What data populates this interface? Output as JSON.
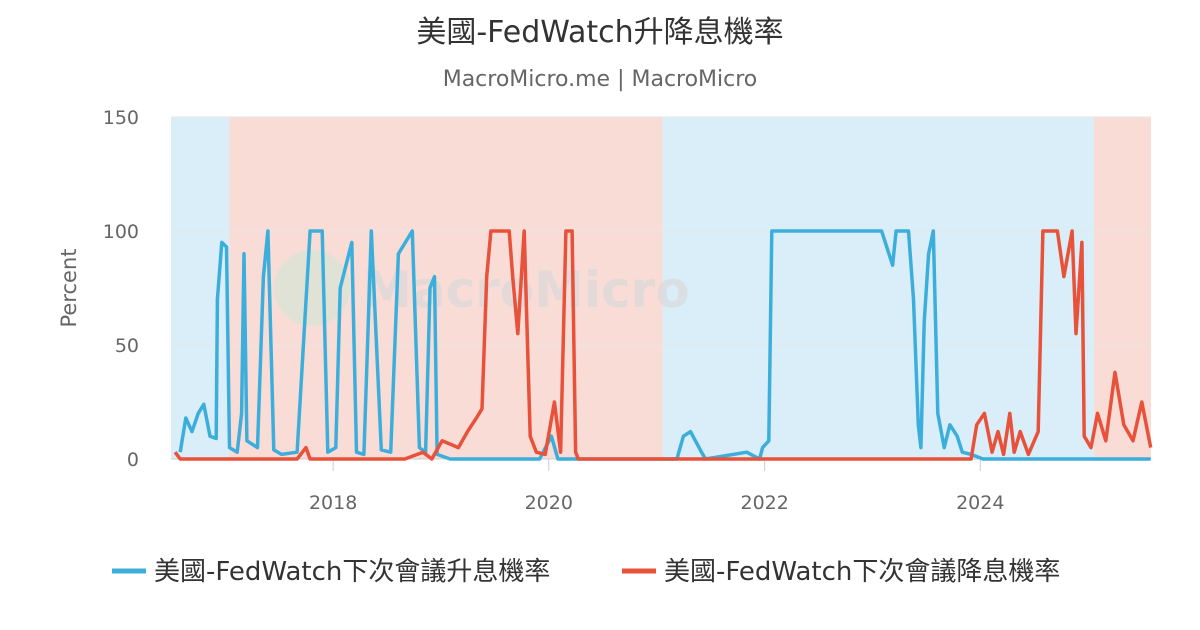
{
  "chart_data": {
    "type": "line",
    "title": "美國-FedWatch升降息機率",
    "subtitle": "MacroMicro.me | MacroMicro",
    "ylabel": "Percent",
    "xlabel": "",
    "ylim": [
      0,
      150
    ],
    "yticks": [
      0,
      50,
      100,
      150
    ],
    "xlim": [
      "2016-07-01",
      "2025-08-01"
    ],
    "xticks": [
      {
        "date": "2018-01-01",
        "label": "2018"
      },
      {
        "date": "2020-01-01",
        "label": "2020"
      },
      {
        "date": "2022-01-01",
        "label": "2022"
      },
      {
        "date": "2024-01-01",
        "label": "2024"
      }
    ],
    "grid": true,
    "legend_position": "bottom",
    "watermark": "MacroMicro",
    "bands": [
      {
        "start": "2016-07-01",
        "end": "2017-01-15",
        "color": "#d9eef8"
      },
      {
        "start": "2017-01-15",
        "end": "2021-01-20",
        "color": "#fadcd6"
      },
      {
        "start": "2021-01-20",
        "end": "2025-01-20",
        "color": "#d9eef8"
      },
      {
        "start": "2025-01-20",
        "end": "2025-08-01",
        "color": "#fadcd6"
      }
    ],
    "series": [
      {
        "name": "美國-FedWatch下次會議升息機率",
        "color": "#3caedb",
        "points": [
          [
            "2016-08-01",
            3
          ],
          [
            "2016-08-20",
            18
          ],
          [
            "2016-09-10",
            12
          ],
          [
            "2016-10-01",
            20
          ],
          [
            "2016-10-20",
            24
          ],
          [
            "2016-11-10",
            10
          ],
          [
            "2016-12-01",
            9
          ],
          [
            "2016-12-05",
            70
          ],
          [
            "2016-12-20",
            95
          ],
          [
            "2017-01-05",
            93
          ],
          [
            "2017-01-15",
            5
          ],
          [
            "2017-02-10",
            3
          ],
          [
            "2017-02-25",
            20
          ],
          [
            "2017-03-05",
            90
          ],
          [
            "2017-03-15",
            8
          ],
          [
            "2017-04-20",
            5
          ],
          [
            "2017-05-10",
            80
          ],
          [
            "2017-05-25",
            100
          ],
          [
            "2017-06-14",
            4
          ],
          [
            "2017-07-10",
            2
          ],
          [
            "2017-09-01",
            3
          ],
          [
            "2017-10-15",
            100
          ],
          [
            "2017-11-25",
            100
          ],
          [
            "2017-12-14",
            3
          ],
          [
            "2018-01-10",
            5
          ],
          [
            "2018-01-25",
            75
          ],
          [
            "2018-03-05",
            95
          ],
          [
            "2018-03-21",
            3
          ],
          [
            "2018-04-15",
            2
          ],
          [
            "2018-05-10",
            100
          ],
          [
            "2018-06-13",
            4
          ],
          [
            "2018-07-15",
            3
          ],
          [
            "2018-08-10",
            90
          ],
          [
            "2018-09-26",
            100
          ],
          [
            "2018-10-20",
            5
          ],
          [
            "2018-11-10",
            3
          ],
          [
            "2018-11-25",
            75
          ],
          [
            "2018-12-10",
            80
          ],
          [
            "2018-12-19",
            2
          ],
          [
            "2019-02-01",
            0
          ],
          [
            "2019-12-01",
            0
          ],
          [
            "2020-01-10",
            10
          ],
          [
            "2020-02-01",
            0
          ],
          [
            "2020-06-01",
            0
          ],
          [
            "2021-01-20",
            0
          ],
          [
            "2021-03-10",
            0
          ],
          [
            "2021-04-01",
            10
          ],
          [
            "2021-04-25",
            12
          ],
          [
            "2021-06-01",
            3
          ],
          [
            "2021-06-15",
            0
          ],
          [
            "2021-11-01",
            3
          ],
          [
            "2021-12-15",
            0
          ],
          [
            "2021-12-25",
            5
          ],
          [
            "2022-01-15",
            8
          ],
          [
            "2022-01-25",
            100
          ],
          [
            "2022-03-16",
            100
          ],
          [
            "2022-05-04",
            100
          ],
          [
            "2022-07-27",
            100
          ],
          [
            "2022-11-02",
            100
          ],
          [
            "2023-02-01",
            100
          ],
          [
            "2023-03-10",
            85
          ],
          [
            "2023-03-22",
            100
          ],
          [
            "2023-05-03",
            100
          ],
          [
            "2023-05-20",
            70
          ],
          [
            "2023-06-05",
            15
          ],
          [
            "2023-06-14",
            5
          ],
          [
            "2023-06-25",
            60
          ],
          [
            "2023-07-10",
            90
          ],
          [
            "2023-07-26",
            100
          ],
          [
            "2023-08-10",
            20
          ],
          [
            "2023-09-01",
            5
          ],
          [
            "2023-09-20",
            15
          ],
          [
            "2023-10-15",
            10
          ],
          [
            "2023-11-01",
            3
          ],
          [
            "2023-12-01",
            2
          ],
          [
            "2024-01-10",
            0
          ],
          [
            "2025-07-31",
            0
          ]
        ]
      },
      {
        "name": "美國-FedWatch下次會議降息機率",
        "color": "#e8513a",
        "points": [
          [
            "2016-07-15",
            3
          ],
          [
            "2016-08-01",
            0
          ],
          [
            "2017-09-01",
            0
          ],
          [
            "2017-10-01",
            5
          ],
          [
            "2017-10-15",
            0
          ],
          [
            "2018-09-01",
            0
          ],
          [
            "2018-11-01",
            3
          ],
          [
            "2018-12-01",
            0
          ],
          [
            "2019-01-05",
            8
          ],
          [
            "2019-03-01",
            5
          ],
          [
            "2019-04-01",
            12
          ],
          [
            "2019-05-01",
            18
          ],
          [
            "2019-05-20",
            22
          ],
          [
            "2019-06-05",
            80
          ],
          [
            "2019-06-19",
            100
          ],
          [
            "2019-07-31",
            100
          ],
          [
            "2019-08-20",
            100
          ],
          [
            "2019-09-01",
            80
          ],
          [
            "2019-09-18",
            55
          ],
          [
            "2019-10-10",
            100
          ],
          [
            "2019-10-30",
            10
          ],
          [
            "2019-11-20",
            3
          ],
          [
            "2019-12-20",
            2
          ],
          [
            "2020-01-20",
            25
          ],
          [
            "2020-02-10",
            3
          ],
          [
            "2020-02-28",
            100
          ],
          [
            "2020-03-20",
            100
          ],
          [
            "2020-04-01",
            3
          ],
          [
            "2020-04-10",
            0
          ],
          [
            "2023-12-01",
            0
          ],
          [
            "2023-12-20",
            15
          ],
          [
            "2024-01-15",
            20
          ],
          [
            "2024-02-10",
            3
          ],
          [
            "2024-03-01",
            12
          ],
          [
            "2024-03-20",
            2
          ],
          [
            "2024-04-10",
            20
          ],
          [
            "2024-04-25",
            3
          ],
          [
            "2024-05-15",
            12
          ],
          [
            "2024-06-12",
            2
          ],
          [
            "2024-07-15",
            12
          ],
          [
            "2024-07-31",
            100
          ],
          [
            "2024-09-18",
            100
          ],
          [
            "2024-10-10",
            80
          ],
          [
            "2024-11-07",
            100
          ],
          [
            "2024-11-20",
            55
          ],
          [
            "2024-12-10",
            95
          ],
          [
            "2024-12-18",
            10
          ],
          [
            "2025-01-10",
            5
          ],
          [
            "2025-02-01",
            20
          ],
          [
            "2025-03-01",
            8
          ],
          [
            "2025-04-01",
            38
          ],
          [
            "2025-05-01",
            15
          ],
          [
            "2025-06-01",
            8
          ],
          [
            "2025-07-01",
            25
          ],
          [
            "2025-07-31",
            5
          ]
        ]
      }
    ]
  }
}
